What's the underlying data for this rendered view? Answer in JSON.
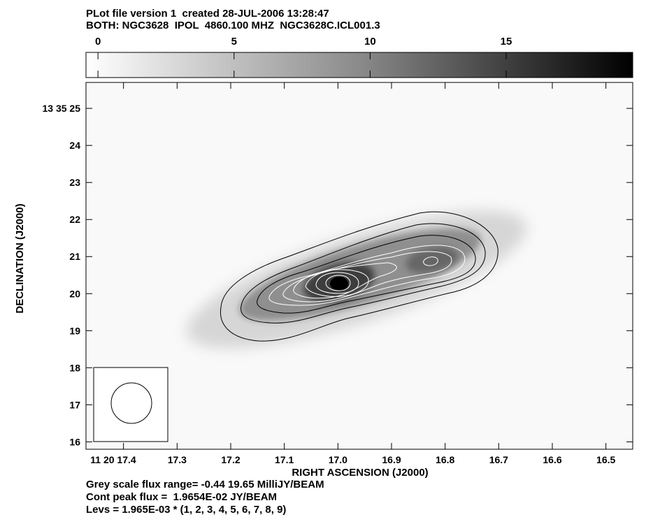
{
  "header": {
    "line1": "PLot file version 1  created 28-JUL-2006 13:28:47",
    "line2": "BOTH: NGC3628  IPOL  4860.100 MHZ  NGC3628C.ICL001.3"
  },
  "colorbar": {
    "ticks": [
      0,
      5,
      10,
      15
    ],
    "tick_labels": [
      "0",
      "5",
      "10",
      "15"
    ],
    "range": [
      -0.44,
      19.65
    ]
  },
  "footer": {
    "line1": "Grey scale flux range= -0.44 19.65 MilliJY/BEAM",
    "line2": "Cont peak flux =  1.9654E-02 JY/BEAM",
    "line3": "Levs = 1.965E-03 * (1, 2, 3, 4, 5, 6, 7, 8, 9)"
  },
  "chart_data": {
    "type": "heatmap",
    "xlabel": "RIGHT ASCENSION (J2000)",
    "ylabel": "DECLINATION (J2000)",
    "xlim": [
      17.47,
      16.45
    ],
    "ylim": [
      15.8,
      25.7
    ],
    "x_ticks": [
      17.4,
      17.3,
      17.2,
      17.1,
      17.0,
      16.9,
      16.8,
      16.7,
      16.6,
      16.5
    ],
    "x_tick_labels": [
      "11 20 17.4",
      "17.3",
      "17.2",
      "17.1",
      "17.0",
      "16.9",
      "16.8",
      "16.7",
      "16.6",
      "16.5"
    ],
    "y_ticks": [
      16,
      17,
      18,
      19,
      20,
      21,
      22,
      23,
      24,
      25
    ],
    "y_tick_labels": [
      "16",
      "17",
      "18",
      "19",
      "20",
      "21",
      "22",
      "23",
      "24",
      "25"
    ],
    "y_top_tick_label": "13 35 25",
    "grey_scale_range_mJy": [
      -0.44,
      19.65
    ],
    "peak_flux_Jy_per_beam": 0.019654,
    "peak_position": {
      "ra_s": 17.02,
      "dec_s": 20.05
    },
    "secondary_peak": {
      "ra_s": 16.83,
      "dec_s": 20.65
    },
    "contour_base": 0.001965,
    "contour_levels": [
      1,
      2,
      3,
      4,
      5,
      6,
      7,
      8,
      9
    ],
    "beam": {
      "center": {
        "ra_s": 17.39,
        "dec_s": 16.85
      },
      "diameter_arcsec": 1.1
    }
  }
}
